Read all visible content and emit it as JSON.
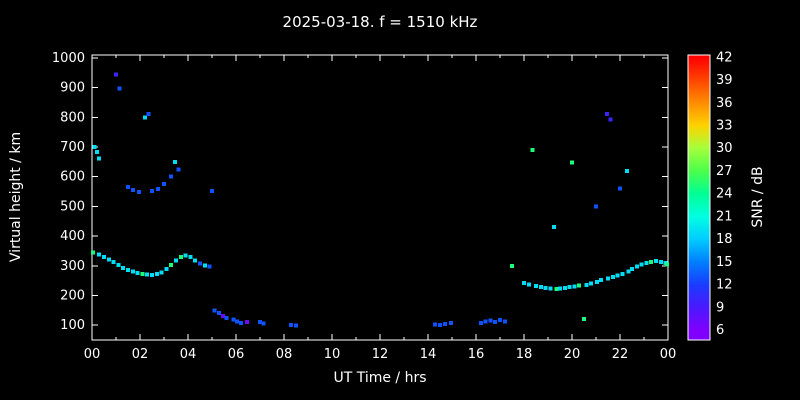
{
  "page": {
    "background": "#000000"
  },
  "header": {
    "title": "2025-03-18. f = 1510 kHz"
  },
  "chart_data": {
    "type": "scatter",
    "title": "2025-03-18. f = 1510 kHz",
    "xlabel": "UT Time / hrs",
    "ylabel": "Virtual height / km",
    "xlim": [
      0,
      24
    ],
    "ylim": [
      50,
      1010
    ],
    "grid": false,
    "background": "#000000",
    "axis_color": "#ffffff",
    "x_major_ticks": [
      0,
      2,
      4,
      6,
      8,
      10,
      12,
      14,
      16,
      18,
      20,
      22,
      24
    ],
    "x_tick_labels": [
      "00",
      "02",
      "04",
      "06",
      "08",
      "10",
      "12",
      "14",
      "16",
      "18",
      "20",
      "22",
      "00"
    ],
    "y_ticks": [
      100,
      200,
      300,
      400,
      500,
      600,
      700,
      800,
      900,
      1000
    ],
    "colorbar": {
      "label": "SNR / dB",
      "min": 6,
      "max": 42,
      "ticks": [
        6,
        9,
        12,
        15,
        18,
        21,
        24,
        27,
        30,
        33,
        36,
        39,
        42
      ],
      "stops": [
        {
          "v": 6,
          "c": "#7f00ff"
        },
        {
          "v": 9,
          "c": "#4b19ff"
        },
        {
          "v": 12,
          "c": "#1a3cff"
        },
        {
          "v": 15,
          "c": "#007fff"
        },
        {
          "v": 18,
          "c": "#00ccff"
        },
        {
          "v": 21,
          "c": "#00ffe1"
        },
        {
          "v": 24,
          "c": "#00ff94"
        },
        {
          "v": 27,
          "c": "#4bff4b"
        },
        {
          "v": 30,
          "c": "#a5ff3c"
        },
        {
          "v": 33,
          "c": "#ffd200"
        },
        {
          "v": 36,
          "c": "#ff8c00"
        },
        {
          "v": 39,
          "c": "#ff4500"
        },
        {
          "v": 42,
          "c": "#ff0000"
        }
      ]
    },
    "points": [
      [
        0.05,
        345,
        25
      ],
      [
        0.1,
        700,
        19
      ],
      [
        0.2,
        683,
        19
      ],
      [
        0.3,
        662,
        19
      ],
      [
        0.3,
        338,
        19
      ],
      [
        0.5,
        330,
        19
      ],
      [
        0.7,
        321,
        19
      ],
      [
        0.9,
        312,
        19
      ],
      [
        1.0,
        945,
        10
      ],
      [
        1.15,
        898,
        13
      ],
      [
        1.1,
        302,
        19
      ],
      [
        1.3,
        293,
        19
      ],
      [
        1.5,
        286,
        19
      ],
      [
        1.7,
        280,
        19
      ],
      [
        1.9,
        276,
        19
      ],
      [
        1.5,
        566,
        13
      ],
      [
        1.7,
        556,
        13
      ],
      [
        1.95,
        549,
        13
      ],
      [
        2.1,
        272,
        25
      ],
      [
        2.3,
        270,
        19
      ],
      [
        2.5,
        269,
        19
      ],
      [
        2.7,
        272,
        19
      ],
      [
        2.9,
        277,
        19
      ],
      [
        2.2,
        800,
        19
      ],
      [
        2.35,
        812,
        13
      ],
      [
        2.5,
        552,
        13
      ],
      [
        2.75,
        558,
        13
      ],
      [
        3.0,
        576,
        13
      ],
      [
        3.3,
        601,
        13
      ],
      [
        3.1,
        289,
        19
      ],
      [
        3.3,
        303,
        25
      ],
      [
        3.5,
        318,
        19
      ],
      [
        3.7,
        329,
        25
      ],
      [
        3.9,
        334,
        19
      ],
      [
        3.45,
        650,
        19
      ],
      [
        3.6,
        624,
        13
      ],
      [
        4.1,
        329,
        19
      ],
      [
        4.3,
        318,
        19
      ],
      [
        4.5,
        308,
        13
      ],
      [
        4.7,
        301,
        19
      ],
      [
        4.9,
        297,
        13
      ],
      [
        5.0,
        552,
        13
      ],
      [
        5.1,
        150,
        13
      ],
      [
        5.3,
        141,
        13
      ],
      [
        5.45,
        131,
        7
      ],
      [
        5.6,
        124,
        13
      ],
      [
        5.9,
        119,
        13
      ],
      [
        6.05,
        113,
        13
      ],
      [
        6.2,
        108,
        13
      ],
      [
        6.45,
        111,
        7
      ],
      [
        7.0,
        110,
        13
      ],
      [
        7.15,
        106,
        13
      ],
      [
        8.3,
        101,
        13
      ],
      [
        8.5,
        99,
        13
      ],
      [
        14.3,
        103,
        13
      ],
      [
        14.5,
        100,
        13
      ],
      [
        14.7,
        104,
        13
      ],
      [
        14.95,
        107,
        13
      ],
      [
        16.2,
        108,
        13
      ],
      [
        16.4,
        112,
        13
      ],
      [
        16.6,
        116,
        13
      ],
      [
        16.8,
        111,
        13
      ],
      [
        17.0,
        118,
        13
      ],
      [
        17.2,
        113,
        13
      ],
      [
        17.5,
        300,
        25
      ],
      [
        18.0,
        242,
        19
      ],
      [
        18.2,
        237,
        19
      ],
      [
        18.35,
        690,
        25
      ],
      [
        18.5,
        232,
        19
      ],
      [
        18.7,
        228,
        19
      ],
      [
        18.9,
        225,
        19
      ],
      [
        19.1,
        223,
        19
      ],
      [
        19.25,
        430,
        19
      ],
      [
        19.35,
        221,
        25
      ],
      [
        19.5,
        223,
        19
      ],
      [
        19.7,
        226,
        19
      ],
      [
        19.9,
        228,
        19
      ],
      [
        20.0,
        648,
        25
      ],
      [
        20.1,
        230,
        19
      ],
      [
        20.3,
        233,
        25
      ],
      [
        20.5,
        120,
        25
      ],
      [
        20.6,
        236,
        19
      ],
      [
        20.8,
        241,
        19
      ],
      [
        21.0,
        500,
        13
      ],
      [
        21.05,
        246,
        19
      ],
      [
        21.2,
        252,
        19
      ],
      [
        21.45,
        812,
        10
      ],
      [
        21.6,
        792,
        10
      ],
      [
        21.5,
        257,
        19
      ],
      [
        21.7,
        263,
        19
      ],
      [
        21.9,
        268,
        19
      ],
      [
        22.0,
        560,
        13
      ],
      [
        22.1,
        273,
        19
      ],
      [
        22.3,
        620,
        19
      ],
      [
        22.35,
        281,
        19
      ],
      [
        22.5,
        290,
        19
      ],
      [
        22.7,
        298,
        19
      ],
      [
        22.9,
        305,
        19
      ],
      [
        23.1,
        310,
        19
      ],
      [
        23.3,
        313,
        25
      ],
      [
        23.5,
        316,
        19
      ],
      [
        23.7,
        313,
        19
      ],
      [
        23.9,
        310,
        19
      ],
      [
        23.95,
        305,
        25
      ]
    ]
  }
}
